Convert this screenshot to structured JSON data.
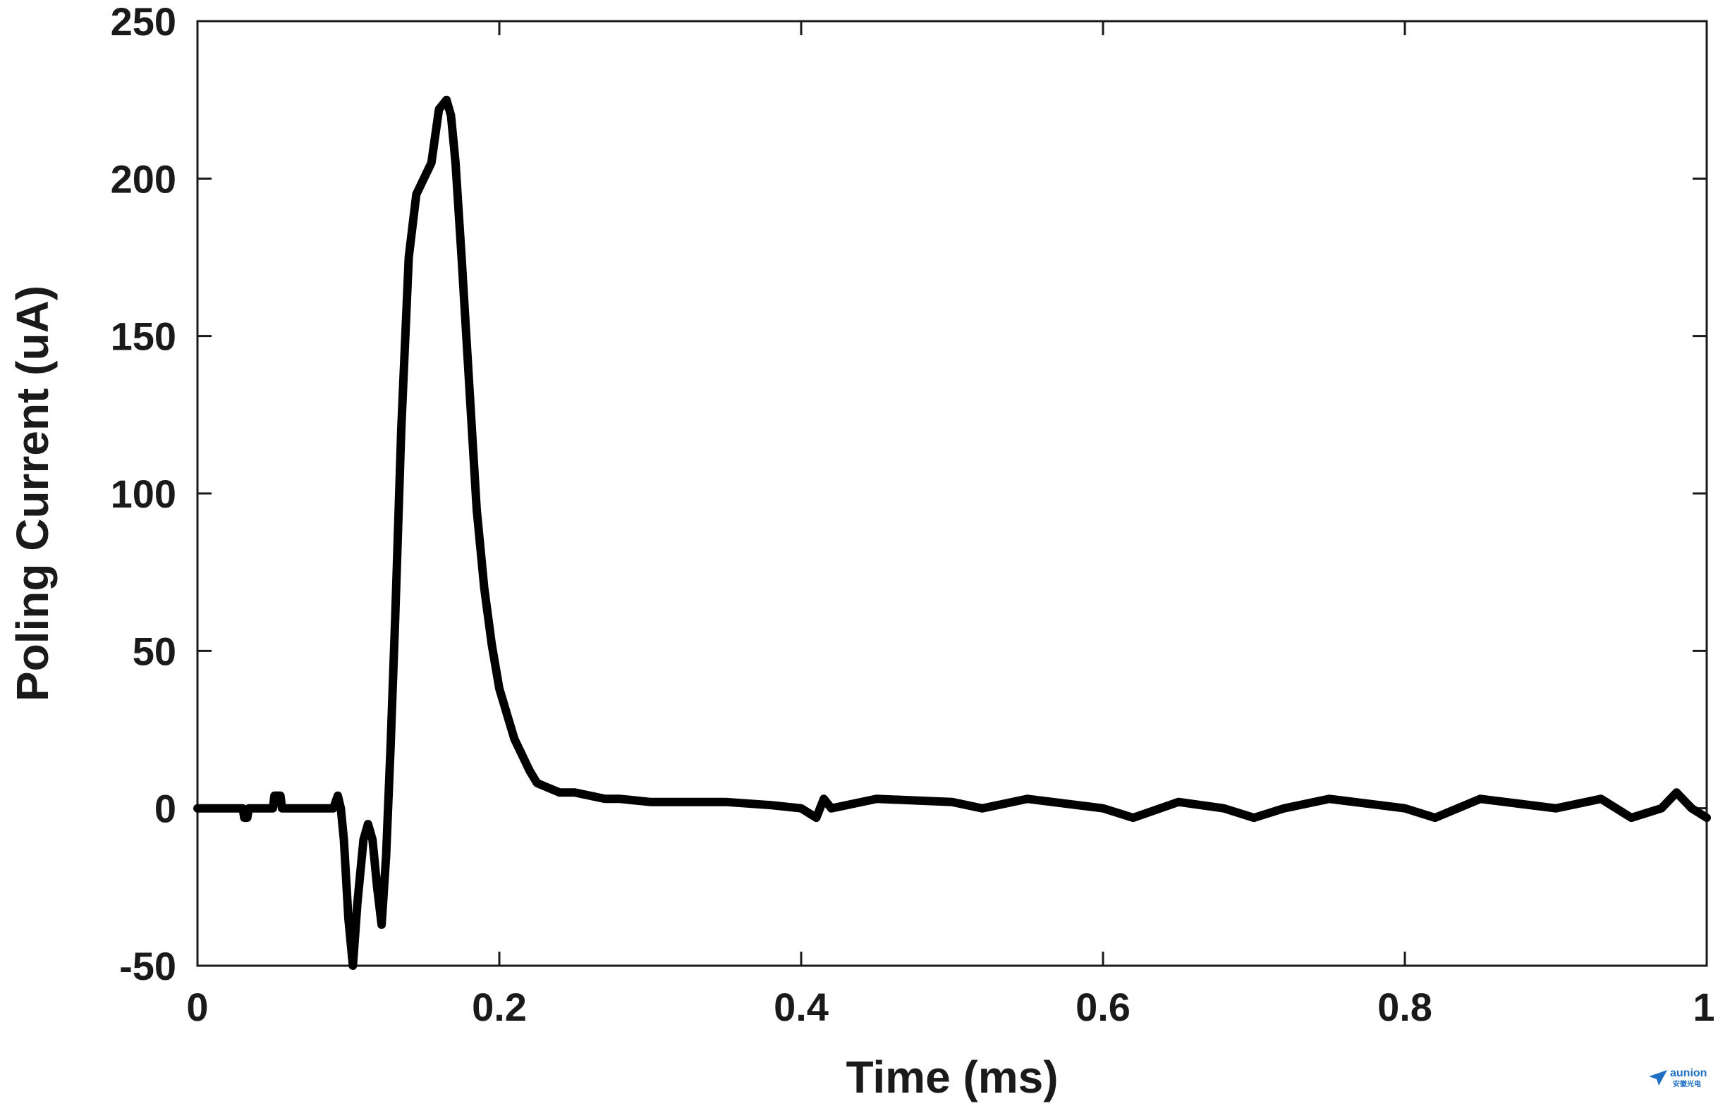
{
  "chart_data": {
    "type": "line",
    "title": "",
    "xlabel": "Time (ms)",
    "ylabel": "Poling Current (uA)",
    "xlim": [
      0,
      1
    ],
    "ylim": [
      -50,
      250
    ],
    "x_ticks": [
      0,
      0.2,
      0.4,
      0.6,
      0.8,
      1
    ],
    "x_tick_labels": [
      "0",
      "0.2",
      "0.4",
      "0.6",
      "0.8",
      "1"
    ],
    "y_ticks": [
      -50,
      0,
      50,
      100,
      150,
      200,
      250
    ],
    "y_tick_labels": [
      "-50",
      "0",
      "50",
      "100",
      "150",
      "200",
      "250"
    ],
    "grid": false,
    "legend": "none",
    "line_color": "#000000",
    "series": [
      {
        "x": [
          0,
          0.03,
          0.031,
          0.033,
          0.034,
          0.05,
          0.051,
          0.055,
          0.056,
          0.07,
          0.09,
          0.093,
          0.095,
          0.097,
          0.1,
          0.103,
          0.106,
          0.11,
          0.113,
          0.116,
          0.119,
          0.122,
          0.125,
          0.128,
          0.131,
          0.135,
          0.14,
          0.145,
          0.15,
          0.155,
          0.16,
          0.165,
          0.168,
          0.171,
          0.175,
          0.18,
          0.185,
          0.19,
          0.195,
          0.2,
          0.205,
          0.21,
          0.215,
          0.22,
          0.225,
          0.23,
          0.235,
          0.24,
          0.25,
          0.26,
          0.27,
          0.28,
          0.3,
          0.32,
          0.35,
          0.38,
          0.4,
          0.41,
          0.415,
          0.42,
          0.45,
          0.5,
          0.52,
          0.55,
          0.6,
          0.62,
          0.65,
          0.68,
          0.7,
          0.72,
          0.75,
          0.8,
          0.82,
          0.85,
          0.9,
          0.93,
          0.95,
          0.97,
          0.98,
          0.99,
          1.0
        ],
        "y": [
          0,
          0,
          -3,
          -3,
          0,
          0,
          4,
          4,
          0,
          0,
          0,
          4,
          0,
          -10,
          -35,
          -50,
          -30,
          -10,
          -5,
          -10,
          -25,
          -37,
          -15,
          20,
          60,
          120,
          175,
          195,
          200,
          205,
          222,
          225,
          220,
          205,
          175,
          135,
          95,
          70,
          52,
          38,
          30,
          22,
          17,
          12,
          8,
          7,
          6,
          5,
          5,
          4,
          3,
          3,
          2,
          2,
          2,
          1,
          0,
          -3,
          3,
          0,
          3,
          2,
          0,
          3,
          0,
          -3,
          2,
          0,
          -3,
          0,
          3,
          0,
          -3,
          3,
          0,
          3,
          -3,
          0,
          5,
          0,
          -3
        ]
      }
    ]
  },
  "watermark": {
    "brand": "aunion",
    "sub": "安徽光电"
  }
}
